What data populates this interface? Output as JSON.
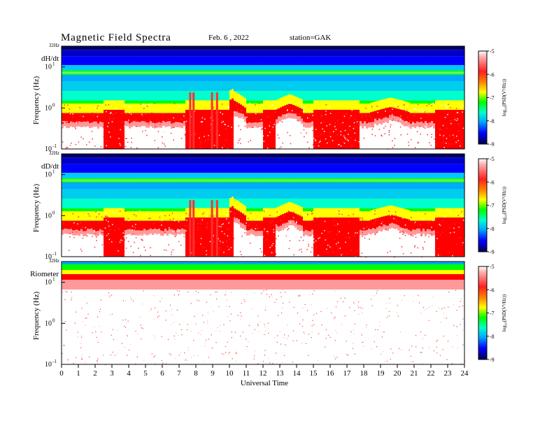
{
  "header": {
    "title": "Magnetic  Field  Spectra",
    "date": "Feb. 6  , 2022",
    "station": "station=GAK"
  },
  "colors": {
    "palette": [
      "#000060",
      "#0000ff",
      "#00aaff",
      "#00ffcc",
      "#00ff00",
      "#ffff00",
      "#ff0000",
      "#ff9999",
      "#ffffff"
    ]
  },
  "chart_data": [
    {
      "type": "heatmap",
      "panel_label": "dH/dt",
      "ylabel": "Frequency  (Hz)",
      "top_tick": "32Hz",
      "y_ticks": [
        {
          "base": "10",
          "exp": "1"
        },
        {
          "base": "10",
          "exp": "0"
        },
        {
          "base": "10",
          "exp": "-1"
        }
      ],
      "xlim": [
        0,
        24
      ],
      "ylim_hz": [
        0.1,
        32
      ],
      "colorbar": {
        "label": "log₁₀(PSD(V²/Hz))",
        "ticks": [
          "-5",
          "-6",
          "-7",
          "-8",
          "-9"
        ],
        "range": [
          -9,
          -5
        ]
      },
      "quiet_windows_ut": [
        [
          0.0,
          2.5
        ],
        [
          3.8,
          7.4
        ],
        [
          10.2,
          12.0
        ],
        [
          12.7,
          15.0
        ],
        [
          17.8,
          22.2
        ]
      ],
      "noise_line_hz": 7.2
    },
    {
      "type": "heatmap",
      "panel_label": "dD/dt",
      "ylabel": "Frequency  (Hz)",
      "top_tick": "32Hz",
      "y_ticks": [
        {
          "base": "10",
          "exp": "1"
        },
        {
          "base": "10",
          "exp": "0"
        },
        {
          "base": "10",
          "exp": "-1"
        }
      ],
      "xlim": [
        0,
        24
      ],
      "ylim_hz": [
        0.1,
        32
      ],
      "colorbar": {
        "label": "log₁₀(PSD(V²/Hz))",
        "ticks": [
          "-5",
          "-6",
          "-7",
          "-8",
          "-9"
        ],
        "range": [
          -9,
          -5
        ]
      },
      "quiet_windows_ut": [
        [
          0.0,
          2.5
        ],
        [
          3.8,
          7.4
        ],
        [
          10.2,
          12.0
        ],
        [
          12.7,
          15.0
        ],
        [
          17.8,
          22.2
        ]
      ],
      "noise_line_hz": 7.2
    },
    {
      "type": "heatmap",
      "panel_label": "Riometer",
      "ylabel": "Frequency  (Hz)",
      "top_tick": "32Hz",
      "y_ticks": [
        {
          "base": "10",
          "exp": "1"
        },
        {
          "base": "10",
          "exp": "0"
        },
        {
          "base": "10",
          "exp": "-1"
        }
      ],
      "xlim": [
        0,
        24
      ],
      "ylim_hz": [
        0.1,
        32
      ],
      "colorbar": {
        "label": "log₁₀(PSD(V²/Hz))",
        "ticks": [
          "-5",
          "-6",
          "-7",
          "-8",
          "-9"
        ],
        "range": [
          -9,
          -5
        ]
      }
    }
  ],
  "x_axis": {
    "label": "Universal  Time",
    "ticks": [
      "0",
      "1",
      "2",
      "3",
      "4",
      "5",
      "6",
      "7",
      "8",
      "9",
      "10",
      "11",
      "12",
      "13",
      "14",
      "15",
      "16",
      "17",
      "18",
      "19",
      "20",
      "21",
      "22",
      "23",
      "24"
    ]
  }
}
